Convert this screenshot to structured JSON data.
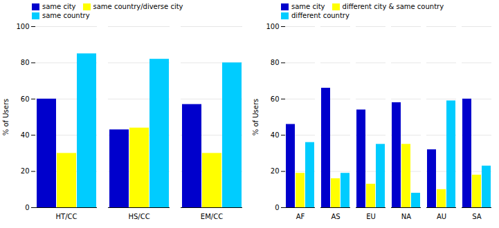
{
  "chart_data": [
    {
      "type": "bar",
      "categories": [
        "HT/CC",
        "HS/CC",
        "EM/CC"
      ],
      "series": [
        {
          "name": "same city",
          "color": "#0000cc",
          "values": [
            60,
            43,
            57
          ]
        },
        {
          "name": "same country/diverse city",
          "color": "#ffff00",
          "values": [
            30,
            44,
            30
          ]
        },
        {
          "name": "same country",
          "color": "#00ccff",
          "values": [
            85,
            82,
            80
          ]
        }
      ],
      "ylabel": "% of Users",
      "ylim": [
        0,
        100
      ],
      "yticks": [
        0,
        20,
        40,
        60,
        80,
        100
      ],
      "grid": true,
      "legend": "upper left"
    },
    {
      "type": "bar",
      "categories": [
        "AF",
        "AS",
        "EU",
        "NA",
        "AU",
        "SA"
      ],
      "series": [
        {
          "name": "same city",
          "color": "#0000cc",
          "values": [
            46,
            66,
            54,
            58,
            32,
            60
          ]
        },
        {
          "name": "different city & same country",
          "color": "#ffff00",
          "values": [
            19,
            16,
            13,
            35,
            10,
            18
          ]
        },
        {
          "name": "different country",
          "color": "#00ccff",
          "values": [
            36,
            19,
            35,
            8,
            59,
            23
          ]
        }
      ],
      "ylabel": "% of Users",
      "ylim": [
        0,
        100
      ],
      "yticks": [
        0,
        20,
        40,
        60,
        80,
        100
      ],
      "grid": true,
      "legend": "upper left"
    }
  ]
}
